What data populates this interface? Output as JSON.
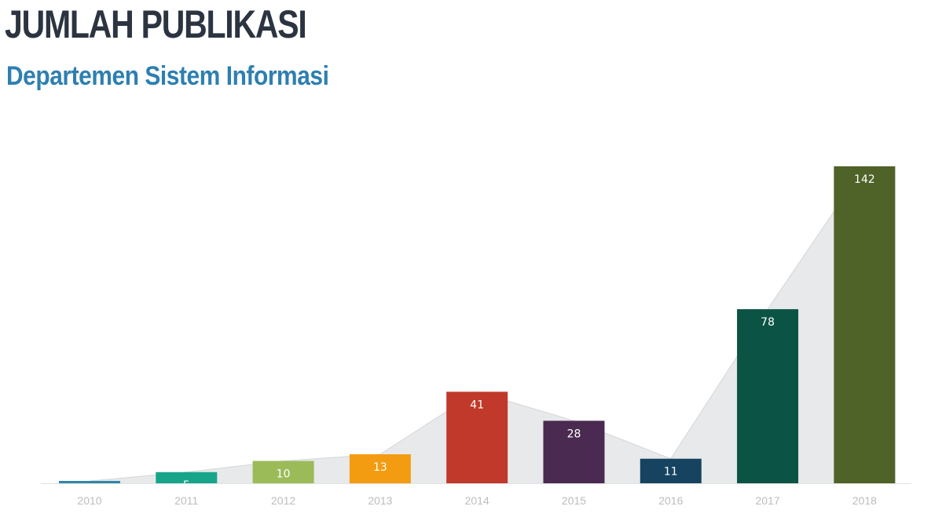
{
  "header": {
    "title": "JUMLAH PUBLIKASI",
    "subtitle": "Departemen Sistem Informasi"
  },
  "chart_data": {
    "type": "bar",
    "title": "JUMLAH PUBLIKASI",
    "subtitle": "Departemen Sistem Informasi",
    "xlabel": "",
    "ylabel": "",
    "categories": [
      "2010",
      "2011",
      "2012",
      "2013",
      "2014",
      "2015",
      "2016",
      "2017",
      "2018"
    ],
    "series": [
      {
        "values": [
          1,
          5,
          10,
          13,
          41,
          28,
          11,
          78,
          142
        ],
        "colors": [
          "#2e86ab",
          "#17a589",
          "#9bbb59",
          "#f39c12",
          "#c0392b",
          "#4a2a50",
          "#154360",
          "#0b5345",
          "#4f6228"
        ]
      }
    ],
    "data_labels": [
      "",
      "5",
      "10",
      "13",
      "41",
      "28",
      "11",
      "78",
      "142"
    ],
    "overlay": {
      "type": "area",
      "color": "#e8e9eb",
      "line_color": "#d6d6d6"
    },
    "ylim": [
      0,
      142
    ],
    "grid": false,
    "legend": "none"
  }
}
